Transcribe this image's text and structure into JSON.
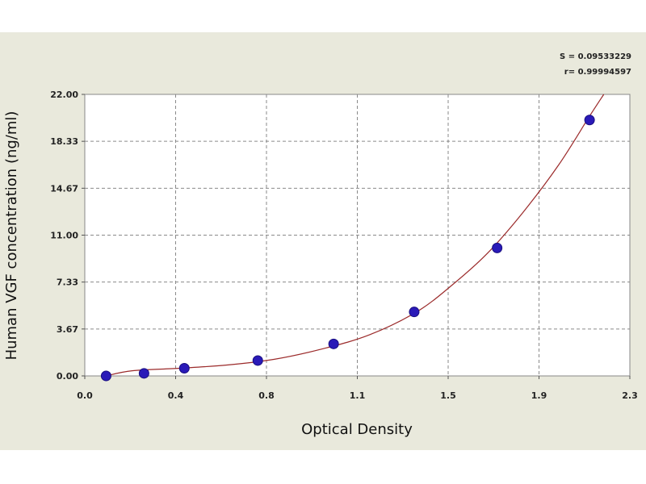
{
  "chart_data": {
    "type": "scatter",
    "xlabel": "Optical Density",
    "ylabel": "Human VGF concentration (ng/ml)",
    "xlim": [
      0.0,
      2.3
    ],
    "ylim": [
      0.0,
      22.0
    ],
    "x_tick_labels": [
      "0.0",
      "0.4",
      "0.8",
      "1.1",
      "1.5",
      "1.9",
      "2.3"
    ],
    "y_tick_labels": [
      "0.00",
      "3.67",
      "7.33",
      "11.00",
      "14.67",
      "18.33",
      "22.00"
    ],
    "grid": true,
    "stats": [
      "S = 0.09533229",
      "r= 0.99994597"
    ],
    "colors": {
      "points": "#2a1ab8",
      "curve": "#9b2a2a",
      "panel": "#e9e9dc"
    },
    "points": [
      {
        "x": 0.09,
        "y": 0.0
      },
      {
        "x": 0.25,
        "y": 0.2
      },
      {
        "x": 0.42,
        "y": 0.6
      },
      {
        "x": 0.73,
        "y": 1.2
      },
      {
        "x": 1.05,
        "y": 2.5
      },
      {
        "x": 1.39,
        "y": 5.0
      },
      {
        "x": 1.74,
        "y": 10.0
      },
      {
        "x": 2.13,
        "y": 20.0
      }
    ],
    "fit_curve": [
      {
        "x": 0.09,
        "y": 0.0
      },
      {
        "x": 0.2,
        "y": 0.4
      },
      {
        "x": 0.4,
        "y": 0.6
      },
      {
        "x": 0.6,
        "y": 0.85
      },
      {
        "x": 0.8,
        "y": 1.3
      },
      {
        "x": 1.0,
        "y": 2.1
      },
      {
        "x": 1.2,
        "y": 3.2
      },
      {
        "x": 1.4,
        "y": 5.0
      },
      {
        "x": 1.55,
        "y": 7.1
      },
      {
        "x": 1.7,
        "y": 9.6
      },
      {
        "x": 1.85,
        "y": 12.8
      },
      {
        "x": 2.0,
        "y": 16.5
      },
      {
        "x": 2.13,
        "y": 20.3
      },
      {
        "x": 2.19,
        "y": 22.0
      }
    ]
  }
}
